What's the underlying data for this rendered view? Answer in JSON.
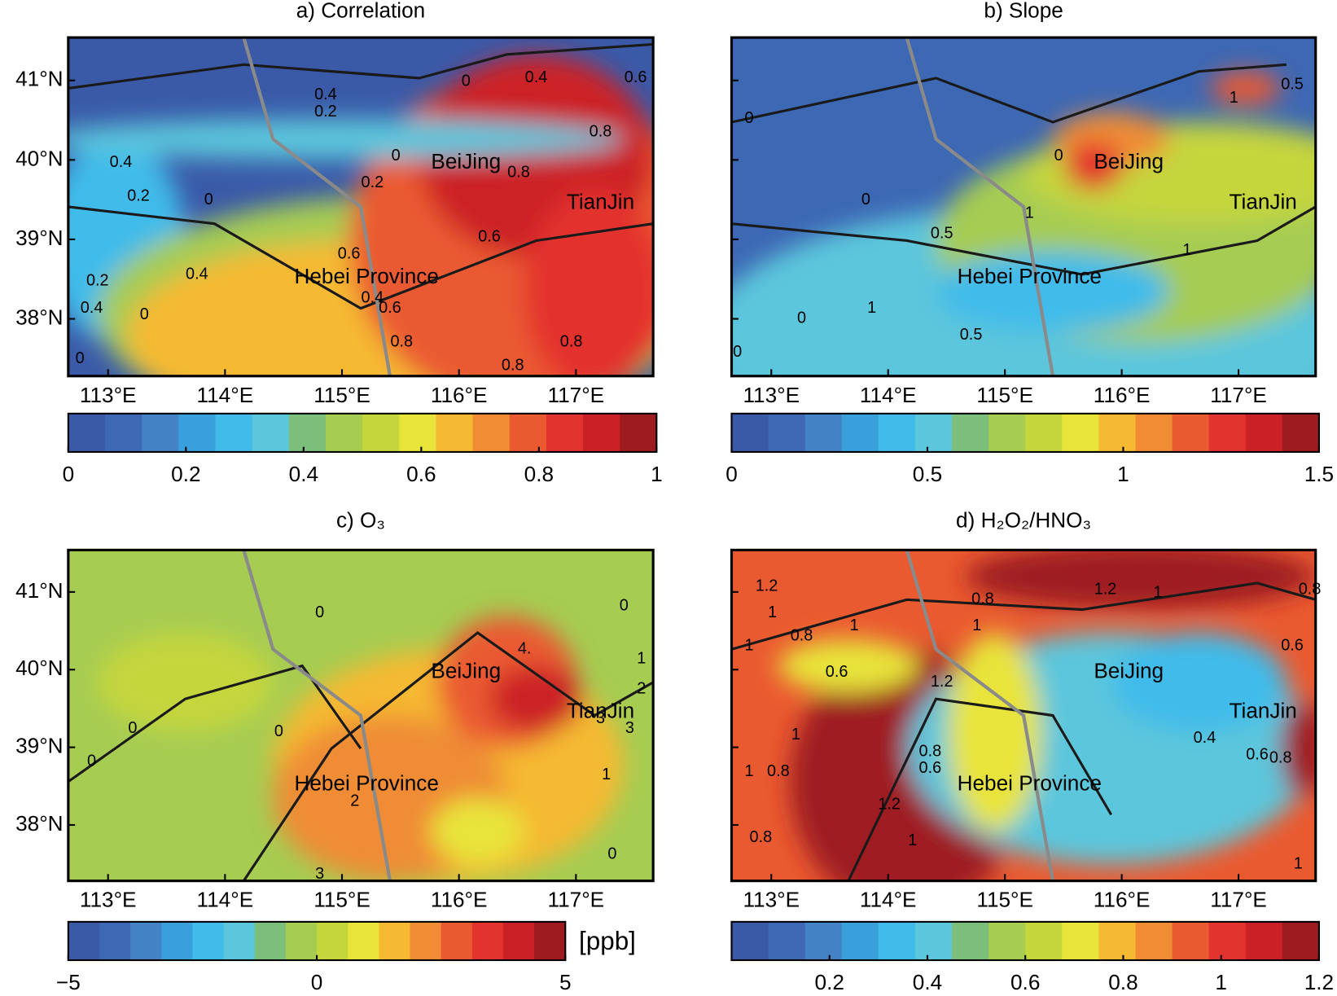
{
  "chart_data": [
    {
      "type": "contour",
      "title": "a) Correlation",
      "xlim": [
        112.66,
        117.66
      ],
      "ylim": [
        37.28,
        41.54
      ],
      "xticks": [
        {
          "value": 113,
          "label": "113°E"
        },
        {
          "value": 114,
          "label": "114°E"
        },
        {
          "value": 115,
          "label": "115°E"
        },
        {
          "value": 116,
          "label": "116°E"
        },
        {
          "value": 117,
          "label": "117°E"
        }
      ],
      "yticks": [
        {
          "value": 38,
          "label": "38°N"
        },
        {
          "value": 39,
          "label": "39°N"
        },
        {
          "value": 40,
          "label": "40°N"
        },
        {
          "value": 41,
          "label": "41°N"
        }
      ],
      "colorbar": {
        "lim": [
          0,
          1
        ],
        "ticks": [
          0,
          0.2,
          0.4,
          0.6,
          0.8,
          1
        ],
        "colors": [
          "#3a5aa8",
          "#3d68b4",
          "#4482c6",
          "#3aa0dc",
          "#40bbea",
          "#5cc6dc",
          "#7bbf7a",
          "#a6cc52",
          "#c5d63c",
          "#e8e43a",
          "#f5b932",
          "#ef8c34",
          "#ea5a30",
          "#e3332e",
          "#cc2027",
          "#9e1b20"
        ]
      },
      "annotations": [
        "BeiJing",
        "TianJin",
        "Hebei Province"
      ],
      "contour_labels": [
        "0.4",
        "0.2",
        "0",
        "0.4",
        "0.6",
        "0.8",
        "0.8",
        "0",
        "0.2",
        "0.4",
        "0.2",
        "0",
        "0.6",
        "0.6",
        "0.4",
        "0.4",
        "0.6",
        "0.8",
        "0.8",
        "0.8",
        "0.2",
        "0.4",
        "0",
        "0"
      ]
    },
    {
      "type": "contour",
      "title": "b) Slope",
      "xlim": [
        112.66,
        117.66
      ],
      "ylim": [
        37.28,
        41.54
      ],
      "xticks": [
        {
          "value": 113,
          "label": "113°E"
        },
        {
          "value": 114,
          "label": "114°E"
        },
        {
          "value": 115,
          "label": "115°E"
        },
        {
          "value": 116,
          "label": "116°E"
        },
        {
          "value": 117,
          "label": "117°E"
        }
      ],
      "yticks": [
        {
          "value": 38,
          "label": "38°N"
        },
        {
          "value": 39,
          "label": "39°N"
        },
        {
          "value": 40,
          "label": "40°N"
        },
        {
          "value": 41,
          "label": "41°N"
        }
      ],
      "colorbar": {
        "lim": [
          0,
          1.5
        ],
        "ticks": [
          0,
          0.5,
          1,
          1.5
        ],
        "colors": [
          "#3a5aa8",
          "#3d68b4",
          "#4482c6",
          "#3aa0dc",
          "#40bbea",
          "#5cc6dc",
          "#7bbf7a",
          "#a6cc52",
          "#c5d63c",
          "#e8e43a",
          "#f5b932",
          "#ef8c34",
          "#ea5a30",
          "#e3332e",
          "#cc2027",
          "#9e1b20"
        ]
      },
      "annotations": [
        "BeiJing",
        "TianJin",
        "Hebei Province"
      ],
      "contour_labels": [
        "0",
        "0",
        "0",
        "0.5",
        "1",
        "1",
        "0.5",
        "1",
        "1",
        "0.5",
        "0",
        "0"
      ]
    },
    {
      "type": "contour",
      "title": "c) O₃",
      "xlim": [
        112.66,
        117.66
      ],
      "ylim": [
        37.28,
        41.54
      ],
      "xticks": [
        {
          "value": 113,
          "label": "113°E"
        },
        {
          "value": 114,
          "label": "114°E"
        },
        {
          "value": 115,
          "label": "115°E"
        },
        {
          "value": 116,
          "label": "116°E"
        },
        {
          "value": 117,
          "label": "117°E"
        }
      ],
      "yticks": [
        {
          "value": 38,
          "label": "38°N"
        },
        {
          "value": 39,
          "label": "39°N"
        },
        {
          "value": 40,
          "label": "40°N"
        },
        {
          "value": 41,
          "label": "41°N"
        }
      ],
      "colorbar": {
        "lim": [
          -5,
          5
        ],
        "ticks": [
          {
            "value": -5,
            "label": "−5"
          },
          0,
          5
        ],
        "label": "[ppb]",
        "colors": [
          "#3a5aa8",
          "#3d68b4",
          "#4482c6",
          "#3aa0dc",
          "#40bbea",
          "#5cc6dc",
          "#7bbf7a",
          "#a6cc52",
          "#c5d63c",
          "#e8e43a",
          "#f5b932",
          "#ef8c34",
          "#ea5a30",
          "#e3332e",
          "#cc2027",
          "#9e1b20"
        ]
      },
      "annotations": [
        "BeiJing",
        "TianJin",
        "Hebei Province"
      ],
      "contour_labels": [
        "0",
        "0",
        "0",
        "0",
        "0",
        "0",
        "4.",
        "3",
        "3",
        "2",
        "1",
        "1",
        "2",
        "3"
      ]
    },
    {
      "type": "contour",
      "title": "d) H₂O₂/HNO₃",
      "xlim": [
        112.66,
        117.66
      ],
      "ylim": [
        37.28,
        41.54
      ],
      "xticks": [
        {
          "value": 113,
          "label": "113°E"
        },
        {
          "value": 114,
          "label": "114°E"
        },
        {
          "value": 115,
          "label": "115°E"
        },
        {
          "value": 116,
          "label": "116°E"
        },
        {
          "value": 117,
          "label": "117°E"
        }
      ],
      "yticks": [
        {
          "value": 38,
          "label": "38°N"
        },
        {
          "value": 39,
          "label": "39°N"
        },
        {
          "value": 40,
          "label": "40°N"
        },
        {
          "value": 41,
          "label": "41°N"
        }
      ],
      "colorbar": {
        "lim": [
          0,
          1.2
        ],
        "ticks": [
          0.2,
          0.4,
          0.6,
          0.8,
          1,
          1.2
        ],
        "colors": [
          "#3a5aa8",
          "#3d68b4",
          "#4482c6",
          "#3aa0dc",
          "#40bbea",
          "#5cc6dc",
          "#7bbf7a",
          "#a6cc52",
          "#c5d63c",
          "#e8e43a",
          "#f5b932",
          "#ef8c34",
          "#ea5a30",
          "#e3332e",
          "#cc2027",
          "#9e1b20"
        ]
      },
      "annotations": [
        "BeiJing",
        "TianJin",
        "Hebei Province"
      ],
      "contour_labels": [
        "1.2",
        "1",
        "1",
        "0.8",
        "1",
        "0.6",
        "1.2",
        "1",
        "0.8",
        "1",
        "1.2",
        "0.8",
        "0.6",
        "0.4",
        "0.6",
        "0.8",
        "1",
        "1",
        "0.8",
        "0.8",
        "0.6",
        "0.8",
        "1.2",
        "1",
        "1"
      ]
    }
  ]
}
